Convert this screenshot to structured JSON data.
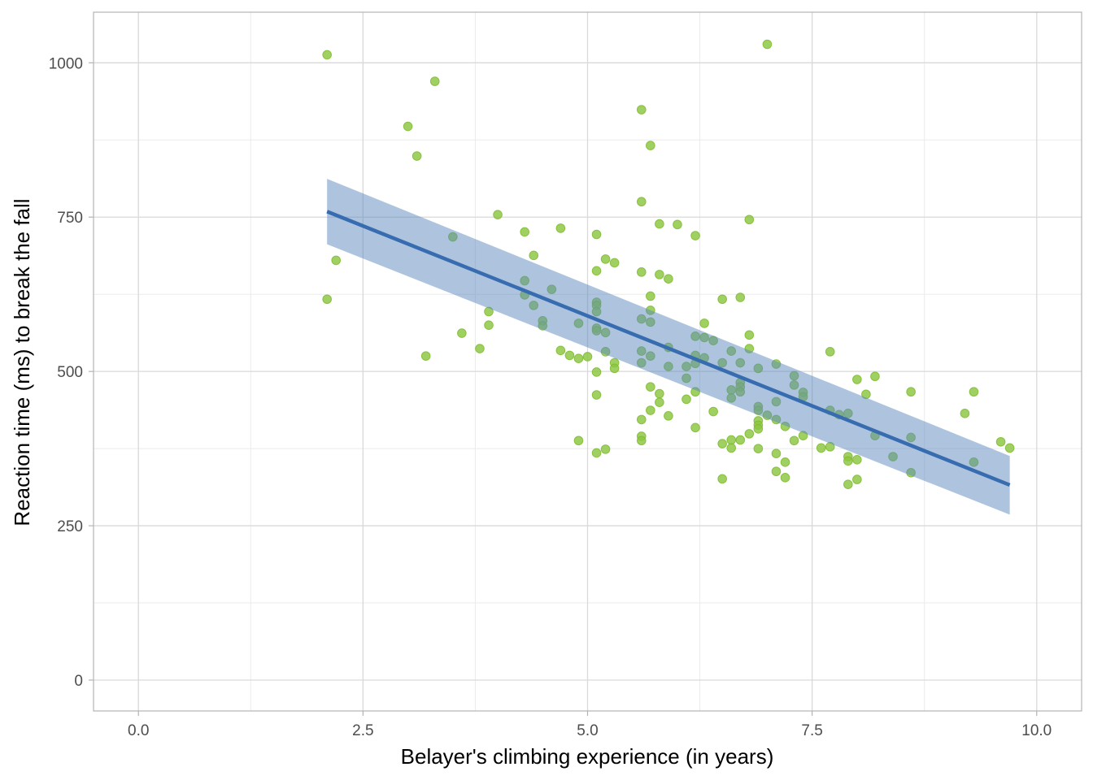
{
  "chart_data": {
    "type": "scatter",
    "title": "",
    "xlabel": "Belayer's climbing experience (in years)",
    "ylabel": "Reaction time (ms) to break the fall",
    "xlim": [
      -0.5,
      10.5
    ],
    "ylim": [
      -50,
      1082
    ],
    "x_ticks": [
      0,
      2.5,
      5,
      7.5,
      10
    ],
    "x_tick_labels": [
      "0.0",
      "2.5",
      "5.0",
      "7.5",
      "10.0"
    ],
    "y_ticks": [
      0,
      250,
      500,
      750,
      1000
    ],
    "y_tick_labels": [
      "0",
      "250",
      "500",
      "750",
      "1000"
    ],
    "grid": true,
    "colors": {
      "points": "#8CC63F",
      "line": "#386CB0",
      "ribbon": "#A4BEDB",
      "grid_major": "#d9d9d9",
      "grid_minor": "#ebebeb",
      "panel_border": "#b3b3b3"
    },
    "fit": {
      "method": "linear",
      "x": [
        2.1,
        9.7
      ],
      "y": [
        759,
        316
      ],
      "ci_lower": [
        706,
        268
      ],
      "ci_upper": [
        812,
        363
      ]
    },
    "points": [
      [
        2.1,
        1013
      ],
      [
        2.1,
        617
      ],
      [
        2.2,
        680
      ],
      [
        3.0,
        897
      ],
      [
        3.1,
        849
      ],
      [
        3.3,
        970
      ],
      [
        3.2,
        525
      ],
      [
        3.5,
        718
      ],
      [
        3.6,
        562
      ],
      [
        3.8,
        537
      ],
      [
        3.9,
        597
      ],
      [
        3.9,
        575
      ],
      [
        4.0,
        754
      ],
      [
        4.3,
        726
      ],
      [
        4.3,
        647
      ],
      [
        4.3,
        624
      ],
      [
        4.4,
        688
      ],
      [
        4.4,
        607
      ],
      [
        4.5,
        582
      ],
      [
        4.5,
        574
      ],
      [
        4.6,
        633
      ],
      [
        4.7,
        732
      ],
      [
        4.7,
        534
      ],
      [
        4.8,
        526
      ],
      [
        4.9,
        578
      ],
      [
        4.9,
        521
      ],
      [
        4.9,
        388
      ],
      [
        5.0,
        524
      ],
      [
        5.1,
        722
      ],
      [
        5.1,
        663
      ],
      [
        5.1,
        612
      ],
      [
        5.1,
        607
      ],
      [
        5.1,
        597
      ],
      [
        5.1,
        570
      ],
      [
        5.1,
        566
      ],
      [
        5.1,
        499
      ],
      [
        5.1,
        462
      ],
      [
        5.1,
        368
      ],
      [
        5.2,
        682
      ],
      [
        5.2,
        563
      ],
      [
        5.2,
        532
      ],
      [
        5.2,
        374
      ],
      [
        5.3,
        676
      ],
      [
        5.3,
        514
      ],
      [
        5.3,
        505
      ],
      [
        5.6,
        924
      ],
      [
        5.6,
        775
      ],
      [
        5.6,
        661
      ],
      [
        5.6,
        585
      ],
      [
        5.6,
        533
      ],
      [
        5.6,
        514
      ],
      [
        5.6,
        422
      ],
      [
        5.6,
        395
      ],
      [
        5.6,
        388
      ],
      [
        5.7,
        866
      ],
      [
        5.7,
        622
      ],
      [
        5.7,
        599
      ],
      [
        5.7,
        580
      ],
      [
        5.7,
        525
      ],
      [
        5.7,
        475
      ],
      [
        5.7,
        437
      ],
      [
        5.8,
        739
      ],
      [
        5.8,
        657
      ],
      [
        5.8,
        464
      ],
      [
        5.8,
        450
      ],
      [
        5.9,
        650
      ],
      [
        5.9,
        539
      ],
      [
        5.9,
        508
      ],
      [
        5.9,
        428
      ],
      [
        6.0,
        738
      ],
      [
        6.1,
        489
      ],
      [
        6.1,
        455
      ],
      [
        6.1,
        508
      ],
      [
        6.2,
        720
      ],
      [
        6.2,
        557
      ],
      [
        6.2,
        526
      ],
      [
        6.2,
        513
      ],
      [
        6.2,
        467
      ],
      [
        6.2,
        409
      ],
      [
        6.3,
        578
      ],
      [
        6.3,
        555
      ],
      [
        6.3,
        522
      ],
      [
        6.4,
        550
      ],
      [
        6.4,
        435
      ],
      [
        6.5,
        617
      ],
      [
        6.5,
        514
      ],
      [
        6.5,
        383
      ],
      [
        6.5,
        326
      ],
      [
        6.6,
        533
      ],
      [
        6.6,
        470
      ],
      [
        6.6,
        457
      ],
      [
        6.6,
        389
      ],
      [
        6.6,
        376
      ],
      [
        6.7,
        620
      ],
      [
        6.7,
        514
      ],
      [
        6.7,
        482
      ],
      [
        6.7,
        475
      ],
      [
        6.7,
        467
      ],
      [
        6.7,
        389
      ],
      [
        6.8,
        746
      ],
      [
        6.8,
        559
      ],
      [
        6.8,
        537
      ],
      [
        6.8,
        399
      ],
      [
        6.9,
        505
      ],
      [
        6.9,
        443
      ],
      [
        6.9,
        437
      ],
      [
        6.9,
        420
      ],
      [
        6.9,
        413
      ],
      [
        6.9,
        407
      ],
      [
        6.9,
        375
      ],
      [
        7.0,
        1030
      ],
      [
        7.0,
        429
      ],
      [
        7.1,
        512
      ],
      [
        7.1,
        451
      ],
      [
        7.1,
        422
      ],
      [
        7.1,
        367
      ],
      [
        7.1,
        338
      ],
      [
        7.2,
        411
      ],
      [
        7.2,
        353
      ],
      [
        7.2,
        328
      ],
      [
        7.3,
        493
      ],
      [
        7.3,
        478
      ],
      [
        7.3,
        388
      ],
      [
        7.4,
        466
      ],
      [
        7.4,
        459
      ],
      [
        7.4,
        396
      ],
      [
        7.6,
        376
      ],
      [
        7.7,
        532
      ],
      [
        7.7,
        437
      ],
      [
        7.7,
        378
      ],
      [
        7.8,
        430
      ],
      [
        7.9,
        432
      ],
      [
        7.9,
        362
      ],
      [
        7.9,
        355
      ],
      [
        7.9,
        317
      ],
      [
        8.0,
        487
      ],
      [
        8.0,
        357
      ],
      [
        8.0,
        325
      ],
      [
        8.1,
        463
      ],
      [
        8.2,
        492
      ],
      [
        8.2,
        396
      ],
      [
        8.4,
        362
      ],
      [
        8.6,
        467
      ],
      [
        8.6,
        393
      ],
      [
        8.6,
        336
      ],
      [
        9.2,
        432
      ],
      [
        9.3,
        467
      ],
      [
        9.3,
        353
      ],
      [
        9.6,
        386
      ],
      [
        9.7,
        376
      ]
    ]
  }
}
